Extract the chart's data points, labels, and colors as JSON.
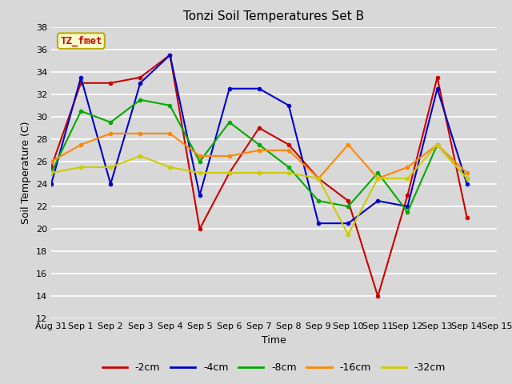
{
  "title": "Tonzi Soil Temperatures Set B",
  "xlabel": "Time",
  "ylabel": "Soil Temperature (C)",
  "xlim": [
    0,
    15
  ],
  "ylim": [
    12,
    38
  ],
  "yticks": [
    12,
    14,
    16,
    18,
    20,
    22,
    24,
    26,
    28,
    30,
    32,
    34,
    36,
    38
  ],
  "xtick_labels": [
    "Aug 31",
    "Sep 1",
    "Sep 2",
    "Sep 3",
    "Sep 4",
    "Sep 5",
    "Sep 6",
    "Sep 7",
    "Sep 8",
    "Sep 9",
    "Sep 10",
    "Sep 11",
    "Sep 12",
    "Sep 13",
    "Sep 14",
    "Sep 15"
  ],
  "annotation_text": "TZ_fmet",
  "annotation_color": "#cc0000",
  "annotation_bg": "#ffffcc",
  "annotation_border": "#bbaa00",
  "series": {
    "-2cm": {
      "color": "#cc0000",
      "x": [
        0,
        1,
        2,
        3,
        4,
        5,
        6,
        7,
        8,
        9,
        10,
        11,
        12,
        13,
        14
      ],
      "y": [
        25.5,
        33.0,
        33.0,
        33.5,
        35.5,
        20.0,
        25.0,
        29.0,
        27.5,
        24.5,
        22.5,
        14.0,
        23.0,
        33.5,
        21.0
      ]
    },
    "-4cm": {
      "color": "#0000cc",
      "x": [
        0,
        1,
        2,
        3,
        4,
        5,
        6,
        7,
        8,
        9,
        10,
        11,
        12,
        13,
        14
      ],
      "y": [
        24.0,
        33.5,
        24.0,
        33.0,
        35.5,
        23.0,
        32.5,
        32.5,
        31.0,
        20.5,
        20.5,
        22.5,
        22.0,
        32.5,
        24.0
      ]
    },
    "-8cm": {
      "color": "#00aa00",
      "x": [
        0,
        1,
        2,
        3,
        4,
        5,
        6,
        7,
        8,
        9,
        10,
        11,
        12,
        13,
        14
      ],
      "y": [
        25.0,
        30.5,
        29.5,
        31.5,
        31.0,
        26.0,
        29.5,
        27.5,
        25.5,
        22.5,
        22.0,
        25.0,
        21.5,
        27.5,
        24.5
      ]
    },
    "-16cm": {
      "color": "#ff8800",
      "x": [
        0,
        1,
        2,
        3,
        4,
        5,
        6,
        7,
        8,
        9,
        10,
        11,
        12,
        13,
        14
      ],
      "y": [
        26.0,
        27.5,
        28.5,
        28.5,
        28.5,
        26.5,
        26.5,
        27.0,
        27.0,
        24.5,
        27.5,
        24.5,
        25.5,
        27.5,
        25.0
      ]
    },
    "-32cm": {
      "color": "#cccc00",
      "x": [
        0,
        1,
        2,
        3,
        4,
        5,
        6,
        7,
        8,
        9,
        10,
        11,
        12,
        13,
        14
      ],
      "y": [
        25.0,
        25.5,
        25.5,
        26.5,
        25.5,
        25.0,
        25.0,
        25.0,
        25.0,
        24.5,
        19.5,
        24.5,
        24.5,
        27.5,
        24.5
      ]
    }
  },
  "legend_order": [
    "-2cm",
    "-4cm",
    "-8cm",
    "-16cm",
    "-32cm"
  ],
  "bg_color": "#d8d8d8",
  "plot_bg_color": "#d8d8d8",
  "grid_color": "#ffffff",
  "title_fontsize": 11,
  "axis_label_fontsize": 9,
  "tick_fontsize": 8,
  "legend_fontsize": 9,
  "line_width": 1.5,
  "figsize": [
    6.4,
    4.8
  ],
  "dpi": 100
}
